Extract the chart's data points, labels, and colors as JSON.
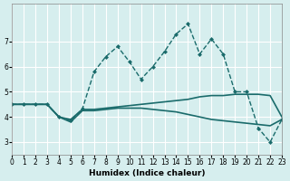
{
  "xlabel": "Humidex (Indice chaleur)",
  "ylabel": "",
  "background_color": "#d6eeee",
  "grid_color": "#ffffff",
  "line_color": "#1a6b6b",
  "xlim": [
    0,
    23
  ],
  "ylim": [
    2.5,
    8.5
  ],
  "yticks": [
    3,
    4,
    5,
    6,
    7
  ],
  "xticks": [
    0,
    1,
    2,
    3,
    4,
    5,
    6,
    7,
    8,
    9,
    10,
    11,
    12,
    13,
    14,
    15,
    16,
    17,
    18,
    19,
    20,
    21,
    22,
    23
  ],
  "series": [
    {
      "x": [
        0,
        1,
        2,
        3,
        4,
        5,
        6,
        7,
        8,
        9,
        10,
        11,
        12,
        13,
        14,
        15,
        16,
        17,
        18,
        19,
        20,
        21,
        22,
        23
      ],
      "y": [
        4.5,
        4.5,
        4.5,
        4.5,
        4.0,
        3.9,
        4.3,
        4.3,
        4.35,
        4.4,
        4.45,
        4.5,
        4.55,
        4.6,
        4.65,
        4.7,
        4.8,
        4.85,
        4.85,
        4.9,
        4.9,
        4.9,
        4.85,
        4.0
      ],
      "marker": false,
      "linestyle": "-",
      "linewidth": 1.2
    },
    {
      "x": [
        0,
        1,
        2,
        3,
        4,
        5,
        6,
        7,
        8,
        9,
        10,
        11,
        12,
        13,
        14,
        15,
        16,
        17,
        18,
        19,
        20,
        21,
        22,
        23
      ],
      "y": [
        4.5,
        4.5,
        4.5,
        4.5,
        4.0,
        3.8,
        4.25,
        4.25,
        4.3,
        4.35,
        4.35,
        4.35,
        4.3,
        4.25,
        4.2,
        4.1,
        4.0,
        3.9,
        3.85,
        3.8,
        3.75,
        3.7,
        3.65,
        3.9
      ],
      "marker": false,
      "linestyle": "-",
      "linewidth": 1.2
    },
    {
      "x": [
        0,
        1,
        2,
        3,
        4,
        5,
        6,
        7,
        8,
        9,
        10,
        11,
        12,
        13,
        14,
        15,
        16,
        17,
        18,
        19,
        20,
        21,
        22,
        23
      ],
      "y": [
        4.5,
        4.5,
        4.5,
        4.5,
        4.0,
        3.85,
        4.32,
        5.8,
        6.4,
        6.8,
        6.2,
        5.5,
        6.0,
        6.6,
        7.3,
        7.7,
        6.5,
        7.1,
        6.5,
        5.0,
        5.0,
        3.55,
        3.0,
        3.9
      ],
      "marker": true,
      "linestyle": "--",
      "linewidth": 1.0
    }
  ]
}
